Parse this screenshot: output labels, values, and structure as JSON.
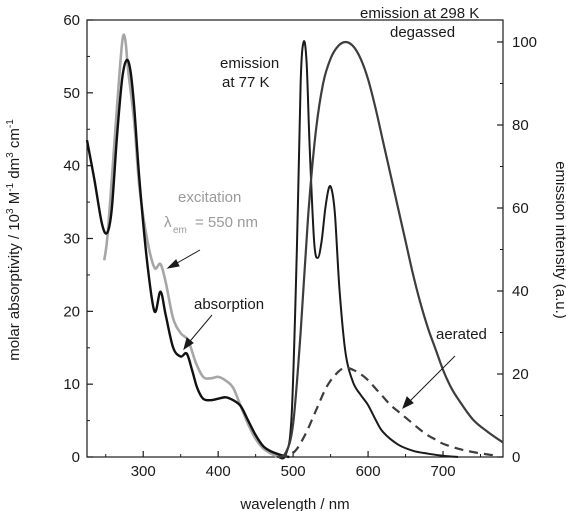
{
  "chart_data": {
    "type": "line",
    "xlabel": "wavelength / nm",
    "ylabel_left": {
      "main": "molar absorptivity / 10",
      "sup1": "3",
      "mid1": " M",
      "sup2": "-1",
      "mid2": " dm",
      "sup3": "3",
      "mid3": " cm",
      "sup4": "-1"
    },
    "ylabel_right": "emission intensity (a.u.)",
    "xlim": [
      225,
      780
    ],
    "ylim_left": [
      0,
      60
    ],
    "ylim_right": [
      0,
      105.3
    ],
    "x_ticks": [
      "300",
      "400",
      "500",
      "600",
      "700"
    ],
    "y_left_ticks": [
      "0",
      "10",
      "20",
      "30",
      "40",
      "50",
      "60"
    ],
    "y_right_ticks": [
      "0",
      "20",
      "40",
      "60",
      "80",
      "100"
    ],
    "colors": {
      "absorption": "#111111",
      "excitation": "#a6a6a6",
      "emission_77K": "#1a1a1a",
      "emission_298K": "#3d3d3d",
      "aerated": "#3d3d3d",
      "excitation_label": "#9a9a9a"
    },
    "series": [
      {
        "name": "absorption",
        "axis": "left",
        "x": [
          225,
          235,
          245,
          252,
          258,
          265,
          272,
          278,
          283,
          288,
          295,
          305,
          315,
          323,
          330,
          340,
          350,
          358,
          365,
          372,
          380,
          390,
          400,
          410,
          420,
          430,
          440,
          450,
          460,
          470,
          480,
          490,
          495
        ],
        "y": [
          43.5,
          38,
          32,
          30.8,
          34,
          44,
          52,
          54.5,
          53,
          48,
          38,
          27,
          20,
          22.7,
          19.5,
          15,
          13.8,
          14.2,
          12,
          9.5,
          8,
          7.8,
          8,
          8.2,
          7.8,
          7,
          5,
          3,
          1.5,
          0.8,
          0.4,
          0.1,
          0
        ]
      },
      {
        "name": "excitation",
        "axis": "left",
        "x": [
          248,
          252,
          258,
          265,
          272,
          276,
          280,
          288,
          295,
          305,
          315,
          323,
          330,
          340,
          350,
          360,
          370,
          380,
          390,
          400,
          410,
          420,
          430,
          440,
          450,
          460,
          470,
          480
        ],
        "y": [
          27,
          30,
          38,
          48,
          57,
          57.3,
          53,
          46,
          37,
          30,
          26,
          26.5,
          24,
          19,
          17,
          16,
          13,
          11,
          10.8,
          11,
          10.5,
          9.5,
          7,
          4.5,
          2.5,
          1.2,
          0.5,
          0
        ]
      },
      {
        "name": "emission at 77 K",
        "axis": "right",
        "x": [
          480,
          490,
          498,
          505,
          510,
          514,
          518,
          522,
          528,
          533,
          538,
          543,
          548,
          552,
          556,
          562,
          570,
          580,
          590,
          600,
          610,
          620,
          640,
          660,
          680,
          700,
          720
        ],
        "y": [
          0,
          0.5,
          10,
          50,
          90,
          100,
          95,
          75,
          52,
          48,
          52,
          60,
          65,
          64,
          58,
          40,
          25,
          18,
          15,
          12.5,
          9,
          6,
          3,
          1.5,
          0.8,
          0.3,
          0
        ]
      },
      {
        "name": "emission at 298 K degassed",
        "axis": "right",
        "x": [
          478,
          490,
          500,
          510,
          520,
          530,
          540,
          550,
          560,
          570,
          580,
          590,
          600,
          610,
          620,
          630,
          640,
          650,
          660,
          670,
          680,
          690,
          700,
          710,
          720,
          740,
          760,
          780
        ],
        "y": [
          0,
          1,
          8,
          30,
          58,
          78,
          90,
          96,
          99,
          100,
          99,
          96,
          91,
          84,
          76,
          68,
          60,
          52,
          44,
          37,
          31,
          26,
          21,
          17,
          14,
          9,
          6,
          3.5
        ]
      },
      {
        "name": "aerated",
        "axis": "right",
        "x": [
          480,
          500,
          515,
          530,
          545,
          560,
          570,
          580,
          590,
          600,
          610,
          620,
          630,
          640,
          650,
          660,
          670,
          680,
          690,
          700,
          720,
          740,
          760,
          770
        ],
        "y": [
          0,
          1,
          5,
          11,
          17,
          20.5,
          21.5,
          21,
          20,
          18.5,
          16.5,
          14.5,
          12.5,
          11,
          9.5,
          8,
          6.5,
          5.2,
          4.2,
          3.2,
          2,
          1.2,
          0.6,
          0.4
        ]
      }
    ],
    "annotations": {
      "emission_77K_line1": "emission",
      "emission_77K_line2": "at 77 K",
      "emission_298K_line1": "emission at 298 K",
      "emission_298K_line2": "degassed",
      "excitation_line1": "excitation",
      "excitation_lambda": "λ",
      "excitation_sub": "em",
      "excitation_value": "= 550 nm",
      "absorption": "absorption",
      "aerated": "aerated"
    }
  }
}
